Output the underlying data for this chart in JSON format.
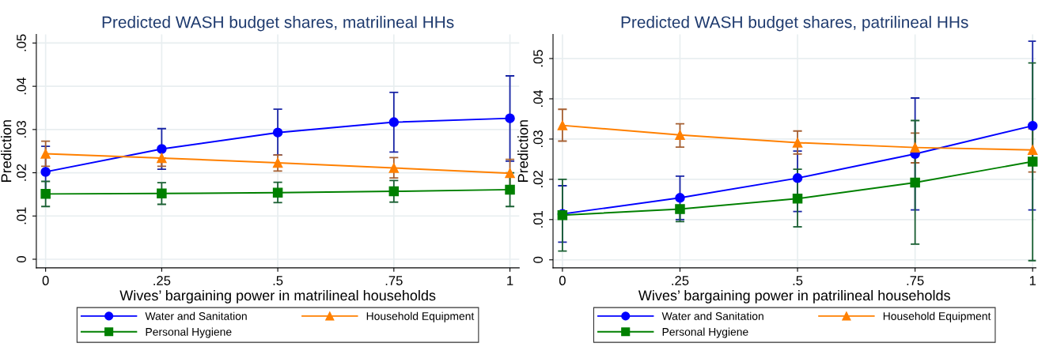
{
  "chart_data": [
    {
      "type": "line",
      "title": "Predicted WASH budget shares, matrilineal HHs",
      "xlabel": "Wives’ bargaining power in matrilineal households",
      "ylabel": "Prediction",
      "x": [
        0,
        0.25,
        0.5,
        0.75,
        1
      ],
      "xlim": [
        -0.02,
        1.02
      ],
      "xticks": [
        0,
        {
          "value": 0.25,
          "label": ".25"
        },
        {
          "value": 0.5,
          "label": ".5"
        },
        {
          "value": 0.75,
          "label": ".75"
        },
        1
      ],
      "ylim": [
        -0.002,
        0.052
      ],
      "yticks": [
        0,
        {
          "value": 0.01,
          "label": ".01"
        },
        {
          "value": 0.02,
          "label": ".02"
        },
        {
          "value": 0.03,
          "label": ".03"
        },
        {
          "value": 0.04,
          "label": ".04"
        },
        {
          "value": 0.05,
          "label": ".05"
        }
      ],
      "grid": true,
      "legend": "bottom",
      "series": [
        {
          "name": "Water and Sanitation",
          "color": "#0000ff",
          "marker": "circle",
          "values": [
            0.0202,
            0.0255,
            0.0293,
            0.0317,
            0.0326
          ],
          "errors": [
            [
              0.0143,
              0.0261
            ],
            [
              0.0208,
              0.0302
            ],
            [
              0.0241,
              0.0347
            ],
            [
              0.0248,
              0.0386
            ],
            [
              0.0227,
              0.0424
            ]
          ]
        },
        {
          "name": "Household Equipment",
          "color": "#ff8000",
          "marker": "triangle",
          "values": [
            0.0244,
            0.0234,
            0.0223,
            0.0211,
            0.0199
          ],
          "errors": [
            [
              0.0215,
              0.0273
            ],
            [
              0.0215,
              0.0234
            ],
            [
              0.0204,
              0.0241
            ],
            [
              0.0188,
              0.0235
            ],
            [
              0.0167,
              0.0231
            ]
          ]
        },
        {
          "name": "Personal Hygiene",
          "color": "#008000",
          "marker": "square",
          "values": [
            0.0151,
            0.0152,
            0.0154,
            0.0157,
            0.0161
          ],
          "errors": [
            [
              0.0122,
              0.018
            ],
            [
              0.0127,
              0.0177
            ],
            [
              0.0131,
              0.0178
            ],
            [
              0.0132,
              0.0182
            ],
            [
              0.0122,
              0.02
            ]
          ]
        }
      ]
    },
    {
      "type": "line",
      "title": "Predicted WASH budget shares, patrilineal HHs",
      "xlabel": "Wives’ bargaining power in patrilineal households",
      "ylabel": "Prediction",
      "x": [
        0,
        0.25,
        0.5,
        0.75,
        1
      ],
      "xlim": [
        -0.02,
        1.007
      ],
      "xticks": [
        0,
        {
          "value": 0.25,
          "label": ".25"
        },
        {
          "value": 0.5,
          "label": ".5"
        },
        {
          "value": 0.75,
          "label": ".75"
        },
        1
      ],
      "ylim": [
        -0.002,
        0.056
      ],
      "yticks": [
        0,
        {
          "value": 0.01,
          "label": ".01"
        },
        {
          "value": 0.02,
          "label": ".02"
        },
        {
          "value": 0.03,
          "label": ".03"
        },
        {
          "value": 0.04,
          "label": ".04"
        },
        {
          "value": 0.05,
          "label": ".05"
        }
      ],
      "grid": true,
      "legend": "bottom",
      "series": [
        {
          "name": "Water and Sanitation",
          "color": "#0000ff",
          "marker": "circle",
          "values": [
            0.0114,
            0.0154,
            0.0203,
            0.0263,
            0.0333
          ],
          "errors": [
            [
              0.0044,
              0.0184
            ],
            [
              0.01,
              0.0208
            ],
            [
              0.012,
              0.027
            ],
            [
              0.0124,
              0.0402
            ],
            [
              0.0124,
              0.0543
            ]
          ]
        },
        {
          "name": "Household Equipment",
          "color": "#ff8000",
          "marker": "triangle",
          "values": [
            0.0334,
            0.031,
            0.0291,
            0.0279,
            0.0273
          ],
          "errors": [
            [
              0.0295,
              0.0374
            ],
            [
              0.028,
              0.0338
            ],
            [
              0.0263,
              0.032
            ],
            [
              0.0241,
              0.0315
            ],
            [
              0.0218,
              0.0325
            ]
          ]
        },
        {
          "name": "Personal Hygiene",
          "color": "#008000",
          "marker": "square",
          "values": [
            0.0111,
            0.0126,
            0.0152,
            0.0192,
            0.0244
          ],
          "errors": [
            [
              0.0022,
              0.02
            ],
            [
              0.0095,
              0.0126
            ],
            [
              0.0082,
              0.0225
            ],
            [
              0.0039,
              0.0346
            ],
            [
              -0.0002,
              0.0489
            ]
          ]
        }
      ]
    }
  ]
}
